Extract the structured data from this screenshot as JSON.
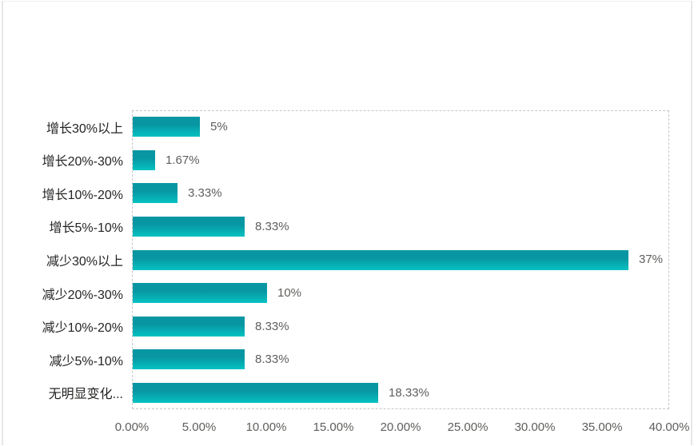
{
  "chart_data": {
    "type": "bar",
    "orientation": "horizontal",
    "title": "",
    "categories": [
      "增长30%以上",
      "增长20%-30%",
      "增长10%-20%",
      "增长5%-10%",
      "减少30%以上",
      "减少20%-30%",
      "减少10%-20%",
      "减少5%-10%",
      "无明显变化..."
    ],
    "values": [
      5,
      1.67,
      3.33,
      8.33,
      37,
      10,
      8.33,
      8.33,
      18.33
    ],
    "value_labels": [
      "5%",
      "1.67%",
      "3.33%",
      "8.33%",
      "37%",
      "10%",
      "8.33%",
      "8.33%",
      "18.33%"
    ],
    "xlabel": "",
    "ylabel": "",
    "xlim": [
      0,
      40
    ],
    "x_ticks": [
      "0.00%",
      "5.00%",
      "10.00%",
      "15.00%",
      "20.00%",
      "25.00%",
      "30.00%",
      "35.00%",
      "40.00%"
    ],
    "grid": "off",
    "plot_border": "dashed",
    "legend": "none"
  },
  "colors": {
    "bar_gradient_top": "#0897a2",
    "bar_gradient_bottom": "#05c2c2",
    "category_label": "#252423",
    "value_label": "#605e5c",
    "axis_label": "#605e5c",
    "plot_border": "#c6c6c6",
    "canvas_border": "#e7e7e7",
    "background": "#ffffff"
  }
}
